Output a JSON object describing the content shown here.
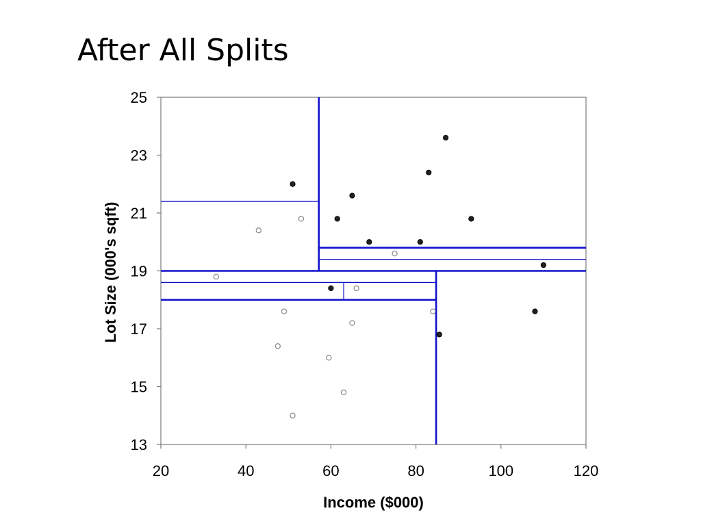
{
  "slide": {
    "title": "After All Splits"
  },
  "chart_data": {
    "type": "scatter",
    "title": "",
    "xlabel": "Income ($000)",
    "ylabel": "Lot Size (000's sqft)",
    "xlim": [
      20,
      120
    ],
    "ylim": [
      13,
      25
    ],
    "xticks": [
      20,
      40,
      60,
      80,
      100,
      120
    ],
    "yticks": [
      13,
      15,
      17,
      19,
      21,
      23,
      25
    ],
    "grid": false,
    "legend": "none",
    "series": [
      {
        "marker": "filled",
        "color": "#222222",
        "points": [
          {
            "x": 51.0,
            "y": 22.0
          },
          {
            "x": 65.0,
            "y": 21.6
          },
          {
            "x": 61.5,
            "y": 20.8
          },
          {
            "x": 87.0,
            "y": 23.6
          },
          {
            "x": 83.0,
            "y": 22.4
          },
          {
            "x": 69.0,
            "y": 20.0
          },
          {
            "x": 81.0,
            "y": 20.0
          },
          {
            "x": 93.0,
            "y": 20.8
          },
          {
            "x": 110.0,
            "y": 19.2
          },
          {
            "x": 60.0,
            "y": 18.4
          },
          {
            "x": 108.0,
            "y": 17.6
          },
          {
            "x": 85.5,
            "y": 16.8
          }
        ]
      },
      {
        "marker": "open",
        "color": "#888888",
        "points": [
          {
            "x": 43.0,
            "y": 20.4
          },
          {
            "x": 53.0,
            "y": 20.8
          },
          {
            "x": 75.0,
            "y": 19.6
          },
          {
            "x": 33.0,
            "y": 18.8
          },
          {
            "x": 66.0,
            "y": 18.4
          },
          {
            "x": 49.0,
            "y": 17.6
          },
          {
            "x": 65.0,
            "y": 17.2
          },
          {
            "x": 84.0,
            "y": 17.6
          },
          {
            "x": 47.5,
            "y": 16.4
          },
          {
            "x": 59.5,
            "y": 16.0
          },
          {
            "x": 63.0,
            "y": 14.8
          },
          {
            "x": 51.0,
            "y": 14.0
          }
        ]
      }
    ],
    "splits": [
      {
        "orientation": "vertical",
        "x": 57.15,
        "y_from": 19.0,
        "y_to": 25.0,
        "weight": "heavy"
      },
      {
        "orientation": "horizontal",
        "y": 19.0,
        "x_from": 20,
        "x_to": 120,
        "weight": "heavy"
      },
      {
        "orientation": "vertical",
        "x": 84.75,
        "y_from": 13.0,
        "y_to": 19.0,
        "weight": "heavy"
      },
      {
        "orientation": "horizontal",
        "y": 21.4,
        "x_from": 20,
        "x_to": 57.15,
        "weight": "light"
      },
      {
        "orientation": "horizontal",
        "y": 19.8,
        "x_from": 57.15,
        "x_to": 120,
        "weight": "heavy"
      },
      {
        "orientation": "horizontal",
        "y": 19.4,
        "x_from": 57.15,
        "x_to": 120,
        "weight": "light"
      },
      {
        "orientation": "horizontal",
        "y": 18.0,
        "x_from": 20,
        "x_to": 84.75,
        "weight": "heavy"
      },
      {
        "orientation": "horizontal",
        "y": 18.6,
        "x_from": 20,
        "x_to": 84.75,
        "weight": "light"
      },
      {
        "orientation": "vertical",
        "x": 63.0,
        "y_from": 18.0,
        "y_to": 18.6,
        "weight": "light"
      }
    ],
    "split_color": "#1010cc"
  }
}
